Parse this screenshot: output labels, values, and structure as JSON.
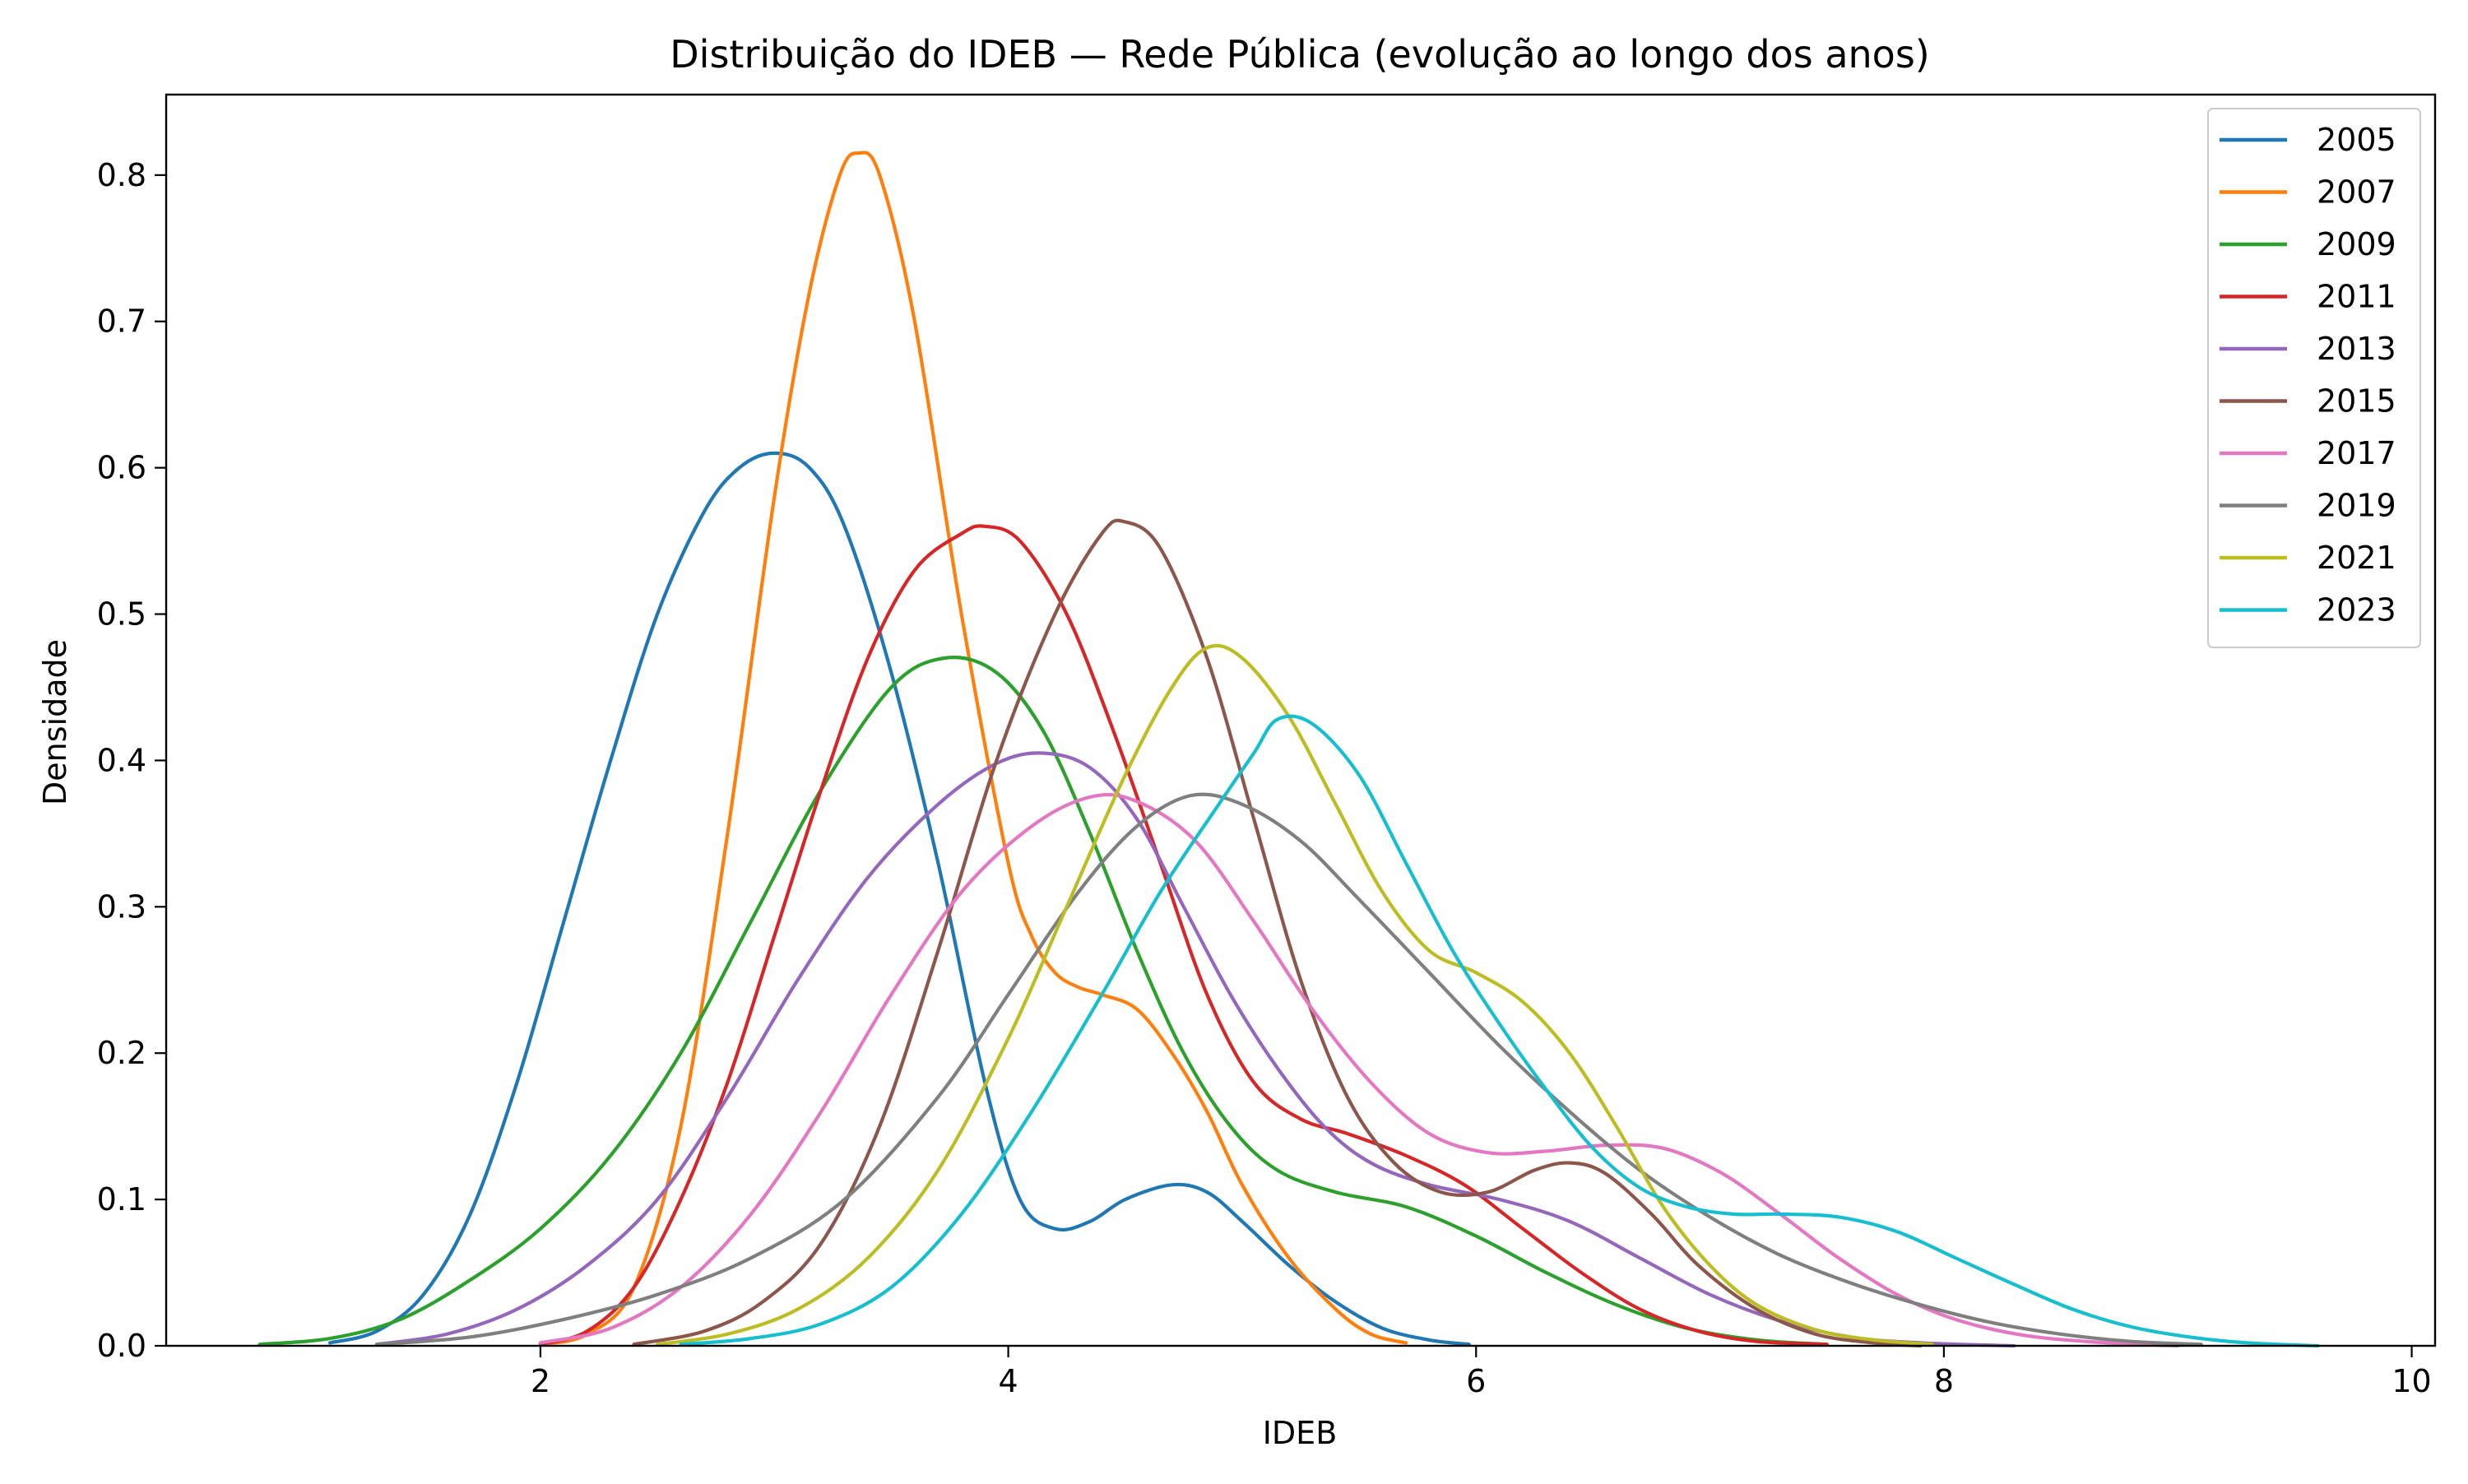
{
  "chart_data": {
    "type": "line",
    "title": "Distribuição do IDEB — Rede Pública (evolução ao longo dos anos)",
    "xlabel": "IDEB",
    "ylabel": "Densidade",
    "xlim": [
      0.4,
      10.1
    ],
    "ylim": [
      0.0,
      0.855
    ],
    "xticks": [
      2,
      4,
      6,
      8,
      10
    ],
    "yticks": [
      0.0,
      0.1,
      0.2,
      0.3,
      0.4,
      0.5,
      0.6,
      0.7,
      0.8
    ],
    "grid": false,
    "legend_position": "top-right",
    "series": [
      {
        "name": "2005",
        "color": "#1f77b4",
        "points": [
          [
            1.1,
            0.002
          ],
          [
            1.3,
            0.01
          ],
          [
            1.5,
            0.035
          ],
          [
            1.7,
            0.09
          ],
          [
            1.9,
            0.18
          ],
          [
            2.1,
            0.29
          ],
          [
            2.3,
            0.4
          ],
          [
            2.5,
            0.5
          ],
          [
            2.7,
            0.57
          ],
          [
            2.85,
            0.6
          ],
          [
            3.0,
            0.61
          ],
          [
            3.15,
            0.6
          ],
          [
            3.3,
            0.56
          ],
          [
            3.5,
            0.46
          ],
          [
            3.7,
            0.33
          ],
          [
            3.9,
            0.18
          ],
          [
            4.05,
            0.1
          ],
          [
            4.2,
            0.08
          ],
          [
            4.35,
            0.085
          ],
          [
            4.5,
            0.1
          ],
          [
            4.7,
            0.11
          ],
          [
            4.85,
            0.105
          ],
          [
            5.0,
            0.085
          ],
          [
            5.2,
            0.055
          ],
          [
            5.4,
            0.03
          ],
          [
            5.6,
            0.012
          ],
          [
            5.8,
            0.004
          ],
          [
            5.97,
            0.001
          ]
        ]
      },
      {
        "name": "2007",
        "color": "#ff7f0e",
        "points": [
          [
            2.0,
            0.001
          ],
          [
            2.2,
            0.008
          ],
          [
            2.4,
            0.04
          ],
          [
            2.6,
            0.15
          ],
          [
            2.8,
            0.35
          ],
          [
            3.0,
            0.58
          ],
          [
            3.15,
            0.72
          ],
          [
            3.28,
            0.8
          ],
          [
            3.36,
            0.815
          ],
          [
            3.45,
            0.8
          ],
          [
            3.6,
            0.7
          ],
          [
            3.8,
            0.5
          ],
          [
            4.0,
            0.33
          ],
          [
            4.1,
            0.28
          ],
          [
            4.2,
            0.255
          ],
          [
            4.3,
            0.245
          ],
          [
            4.4,
            0.24
          ],
          [
            4.55,
            0.23
          ],
          [
            4.7,
            0.2
          ],
          [
            4.85,
            0.16
          ],
          [
            5.0,
            0.11
          ],
          [
            5.2,
            0.06
          ],
          [
            5.4,
            0.025
          ],
          [
            5.55,
            0.008
          ],
          [
            5.7,
            0.002
          ]
        ]
      },
      {
        "name": "2009",
        "color": "#2ca02c",
        "points": [
          [
            0.8,
            0.001
          ],
          [
            1.1,
            0.005
          ],
          [
            1.4,
            0.018
          ],
          [
            1.7,
            0.045
          ],
          [
            2.0,
            0.08
          ],
          [
            2.3,
            0.13
          ],
          [
            2.6,
            0.2
          ],
          [
            2.9,
            0.29
          ],
          [
            3.2,
            0.38
          ],
          [
            3.5,
            0.45
          ],
          [
            3.73,
            0.47
          ],
          [
            3.95,
            0.46
          ],
          [
            4.15,
            0.42
          ],
          [
            4.35,
            0.35
          ],
          [
            4.55,
            0.27
          ],
          [
            4.75,
            0.2
          ],
          [
            4.95,
            0.15
          ],
          [
            5.15,
            0.12
          ],
          [
            5.4,
            0.105
          ],
          [
            5.7,
            0.095
          ],
          [
            6.0,
            0.075
          ],
          [
            6.3,
            0.05
          ],
          [
            6.6,
            0.028
          ],
          [
            6.9,
            0.012
          ],
          [
            7.2,
            0.004
          ],
          [
            7.5,
            0.001
          ]
        ]
      },
      {
        "name": "2011",
        "color": "#d62728",
        "points": [
          [
            2.0,
            0.001
          ],
          [
            2.2,
            0.01
          ],
          [
            2.4,
            0.04
          ],
          [
            2.6,
            0.1
          ],
          [
            2.8,
            0.18
          ],
          [
            3.0,
            0.28
          ],
          [
            3.2,
            0.38
          ],
          [
            3.4,
            0.47
          ],
          [
            3.6,
            0.53
          ],
          [
            3.8,
            0.555
          ],
          [
            3.9,
            0.56
          ],
          [
            4.05,
            0.55
          ],
          [
            4.25,
            0.5
          ],
          [
            4.45,
            0.42
          ],
          [
            4.65,
            0.33
          ],
          [
            4.85,
            0.24
          ],
          [
            5.05,
            0.18
          ],
          [
            5.25,
            0.155
          ],
          [
            5.45,
            0.145
          ],
          [
            5.7,
            0.13
          ],
          [
            5.95,
            0.11
          ],
          [
            6.2,
            0.08
          ],
          [
            6.45,
            0.05
          ],
          [
            6.7,
            0.025
          ],
          [
            6.95,
            0.01
          ],
          [
            7.2,
            0.003
          ],
          [
            7.5,
            0.001
          ]
        ]
      },
      {
        "name": "2013",
        "color": "#9467bd",
        "points": [
          [
            1.3,
            0.001
          ],
          [
            1.6,
            0.008
          ],
          [
            1.9,
            0.025
          ],
          [
            2.2,
            0.055
          ],
          [
            2.5,
            0.1
          ],
          [
            2.8,
            0.17
          ],
          [
            3.1,
            0.25
          ],
          [
            3.4,
            0.32
          ],
          [
            3.7,
            0.37
          ],
          [
            3.95,
            0.398
          ],
          [
            4.15,
            0.405
          ],
          [
            4.35,
            0.395
          ],
          [
            4.55,
            0.36
          ],
          [
            4.75,
            0.3
          ],
          [
            4.95,
            0.24
          ],
          [
            5.15,
            0.19
          ],
          [
            5.35,
            0.15
          ],
          [
            5.55,
            0.125
          ],
          [
            5.8,
            0.11
          ],
          [
            6.1,
            0.1
          ],
          [
            6.4,
            0.085
          ],
          [
            6.7,
            0.06
          ],
          [
            7.0,
            0.035
          ],
          [
            7.3,
            0.017
          ],
          [
            7.6,
            0.006
          ],
          [
            7.9,
            0.002
          ],
          [
            8.3,
            0.0
          ]
        ]
      },
      {
        "name": "2015",
        "color": "#8c564b",
        "points": [
          [
            2.4,
            0.001
          ],
          [
            2.7,
            0.01
          ],
          [
            2.95,
            0.03
          ],
          [
            3.2,
            0.07
          ],
          [
            3.45,
            0.15
          ],
          [
            3.7,
            0.27
          ],
          [
            3.95,
            0.4
          ],
          [
            4.2,
            0.5
          ],
          [
            4.4,
            0.555
          ],
          [
            4.5,
            0.563
          ],
          [
            4.65,
            0.545
          ],
          [
            4.85,
            0.47
          ],
          [
            5.05,
            0.36
          ],
          [
            5.25,
            0.25
          ],
          [
            5.45,
            0.17
          ],
          [
            5.65,
            0.125
          ],
          [
            5.85,
            0.105
          ],
          [
            6.05,
            0.105
          ],
          [
            6.25,
            0.12
          ],
          [
            6.4,
            0.125
          ],
          [
            6.55,
            0.118
          ],
          [
            6.75,
            0.09
          ],
          [
            6.95,
            0.055
          ],
          [
            7.2,
            0.025
          ],
          [
            7.45,
            0.008
          ],
          [
            7.7,
            0.002
          ],
          [
            7.9,
            0.0
          ]
        ]
      },
      {
        "name": "2017",
        "color": "#e377c2",
        "points": [
          [
            2.0,
            0.002
          ],
          [
            2.3,
            0.012
          ],
          [
            2.6,
            0.04
          ],
          [
            2.9,
            0.09
          ],
          [
            3.2,
            0.16
          ],
          [
            3.5,
            0.24
          ],
          [
            3.8,
            0.31
          ],
          [
            4.1,
            0.355
          ],
          [
            4.35,
            0.375
          ],
          [
            4.55,
            0.372
          ],
          [
            4.8,
            0.345
          ],
          [
            5.05,
            0.29
          ],
          [
            5.3,
            0.23
          ],
          [
            5.55,
            0.18
          ],
          [
            5.8,
            0.145
          ],
          [
            6.05,
            0.132
          ],
          [
            6.3,
            0.133
          ],
          [
            6.55,
            0.137
          ],
          [
            6.8,
            0.135
          ],
          [
            7.05,
            0.118
          ],
          [
            7.3,
            0.09
          ],
          [
            7.55,
            0.06
          ],
          [
            7.8,
            0.035
          ],
          [
            8.05,
            0.018
          ],
          [
            8.35,
            0.007
          ],
          [
            8.7,
            0.002
          ],
          [
            9.0,
            0.0
          ]
        ]
      },
      {
        "name": "2019",
        "color": "#7f7f7f",
        "points": [
          [
            1.3,
            0.001
          ],
          [
            1.7,
            0.006
          ],
          [
            2.1,
            0.018
          ],
          [
            2.5,
            0.035
          ],
          [
            2.9,
            0.06
          ],
          [
            3.3,
            0.1
          ],
          [
            3.7,
            0.17
          ],
          [
            4.0,
            0.24
          ],
          [
            4.3,
            0.31
          ],
          [
            4.55,
            0.355
          ],
          [
            4.78,
            0.376
          ],
          [
            5.0,
            0.37
          ],
          [
            5.25,
            0.345
          ],
          [
            5.5,
            0.305
          ],
          [
            5.8,
            0.255
          ],
          [
            6.1,
            0.205
          ],
          [
            6.4,
            0.16
          ],
          [
            6.7,
            0.12
          ],
          [
            7.0,
            0.088
          ],
          [
            7.3,
            0.062
          ],
          [
            7.6,
            0.043
          ],
          [
            7.9,
            0.028
          ],
          [
            8.2,
            0.016
          ],
          [
            8.5,
            0.008
          ],
          [
            8.8,
            0.003
          ],
          [
            9.1,
            0.001
          ]
        ]
      },
      {
        "name": "2021",
        "color": "#bcbd22",
        "points": [
          [
            2.5,
            0.001
          ],
          [
            2.8,
            0.008
          ],
          [
            3.1,
            0.025
          ],
          [
            3.4,
            0.06
          ],
          [
            3.7,
            0.12
          ],
          [
            4.0,
            0.21
          ],
          [
            4.25,
            0.3
          ],
          [
            4.5,
            0.39
          ],
          [
            4.7,
            0.45
          ],
          [
            4.85,
            0.477
          ],
          [
            5.0,
            0.47
          ],
          [
            5.2,
            0.43
          ],
          [
            5.4,
            0.37
          ],
          [
            5.6,
            0.31
          ],
          [
            5.8,
            0.27
          ],
          [
            6.0,
            0.255
          ],
          [
            6.2,
            0.235
          ],
          [
            6.4,
            0.2
          ],
          [
            6.6,
            0.15
          ],
          [
            6.8,
            0.095
          ],
          [
            7.0,
            0.055
          ],
          [
            7.2,
            0.028
          ],
          [
            7.45,
            0.011
          ],
          [
            7.7,
            0.004
          ],
          [
            7.95,
            0.001
          ]
        ]
      },
      {
        "name": "2023",
        "color": "#17becf",
        "points": [
          [
            2.6,
            0.001
          ],
          [
            2.9,
            0.005
          ],
          [
            3.2,
            0.015
          ],
          [
            3.5,
            0.04
          ],
          [
            3.8,
            0.09
          ],
          [
            4.1,
            0.16
          ],
          [
            4.4,
            0.24
          ],
          [
            4.65,
            0.31
          ],
          [
            4.9,
            0.37
          ],
          [
            5.05,
            0.405
          ],
          [
            5.15,
            0.428
          ],
          [
            5.3,
            0.425
          ],
          [
            5.5,
            0.39
          ],
          [
            5.7,
            0.33
          ],
          [
            5.9,
            0.27
          ],
          [
            6.1,
            0.22
          ],
          [
            6.3,
            0.175
          ],
          [
            6.5,
            0.135
          ],
          [
            6.7,
            0.108
          ],
          [
            6.9,
            0.095
          ],
          [
            7.1,
            0.09
          ],
          [
            7.3,
            0.09
          ],
          [
            7.55,
            0.088
          ],
          [
            7.8,
            0.078
          ],
          [
            8.05,
            0.06
          ],
          [
            8.3,
            0.042
          ],
          [
            8.55,
            0.025
          ],
          [
            8.8,
            0.013
          ],
          [
            9.05,
            0.006
          ],
          [
            9.3,
            0.002
          ],
          [
            9.6,
            0.0
          ]
        ]
      }
    ]
  }
}
